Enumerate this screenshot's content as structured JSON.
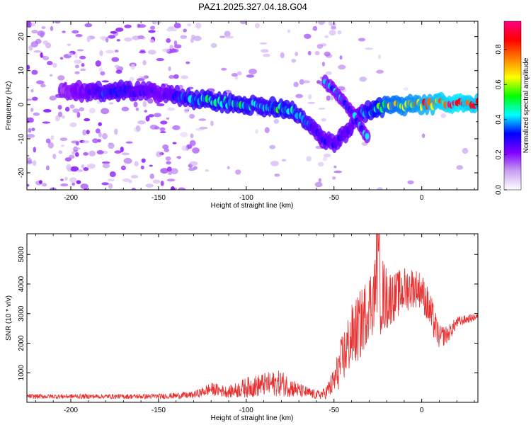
{
  "title": "PAZ1.2025.327.04.18.G04",
  "chart_data": [
    {
      "type": "heatmap",
      "xlabel": "Height of straight line (km)",
      "ylabel": "Frequency (Hz)",
      "xlim": [
        -225,
        32
      ],
      "ylim": [
        -25,
        24.5
      ],
      "xticks": [
        -200,
        -150,
        -100,
        -50,
        0
      ],
      "xtick_labels": [
        "-200",
        "-150",
        "-100",
        "-50",
        "0"
      ],
      "yticks": [
        20,
        10,
        0,
        -10,
        -20
      ],
      "ytick_labels": [
        "20",
        "10",
        "0",
        "-10",
        "-20"
      ],
      "colorbar": {
        "label": "Normalized spectral amplitude",
        "range": [
          0,
          0.96
        ],
        "ticks": [
          0,
          0.2,
          0.4,
          0.6,
          0.8
        ],
        "tick_labels": [
          "0.0",
          "0.2",
          "0.4",
          "0.6",
          "0.8"
        ],
        "colors": [
          "#ffffff",
          "#c8a0f0",
          "#8000ff",
          "#0000ff",
          "#00ffff",
          "#00ff00",
          "#ffff00",
          "#ff8000",
          "#ff0000",
          "#ff0080"
        ]
      },
      "ridge_main": {
        "x": [
          -200,
          -190,
          -180,
          -170,
          -160,
          -150,
          -140,
          -130,
          -120,
          -110,
          -100,
          -90,
          -80,
          -70,
          -65,
          -60,
          -55,
          -50,
          -45,
          -40,
          -35,
          -30,
          -25,
          -20,
          -10,
          0,
          10,
          20,
          30
        ],
        "y": [
          4,
          3.5,
          3.5,
          4,
          4,
          3.5,
          2.5,
          1.5,
          1,
          0.5,
          0,
          -0.5,
          -1,
          -3,
          -5,
          -8,
          -10,
          -12,
          -9,
          -6,
          -3,
          -2,
          -1,
          -0.5,
          0,
          0,
          0.5,
          0.5,
          0.5
        ]
      },
      "ridge_branch": {
        "x": [
          -55,
          -50,
          -45,
          -40,
          -35,
          -30
        ],
        "y": [
          6.5,
          4,
          1,
          -2,
          -6,
          -11
        ]
      },
      "ridge_amplitude": [
        0.2,
        0.3,
        0.35,
        0.35,
        0.3,
        0.25,
        0.35,
        0.45,
        0.5,
        0.5,
        0.5,
        0.45,
        0.55,
        0.45,
        0.4,
        0.3,
        0.3,
        0.3,
        0.3,
        0.3,
        0.35,
        0.45,
        0.6,
        0.75,
        0.8,
        0.85,
        0.9,
        0.95,
        0.9
      ]
    },
    {
      "type": "line",
      "xlabel": "Height of straight line (km)",
      "ylabel": "SNR (10 * v/v)",
      "xlim": [
        -225,
        32
      ],
      "ylim": [
        0,
        5700
      ],
      "xticks": [
        -200,
        -150,
        -100,
        -50,
        0
      ],
      "xtick_labels": [
        "-200",
        "-150",
        "-100",
        "-50",
        "0"
      ],
      "yticks": [
        1000,
        2000,
        3000,
        4000,
        5000
      ],
      "ytick_labels": [
        "1000",
        "2000",
        "3000",
        "4000",
        "5000"
      ],
      "color": "#e83030",
      "series": [
        {
          "name": "SNR",
          "x": [
            -225,
            -200,
            -175,
            -150,
            -130,
            -120,
            -110,
            -100,
            -90,
            -80,
            -70,
            -60,
            -55,
            -50,
            -45,
            -40,
            -35,
            -30,
            -25,
            -20,
            -15,
            -10,
            -5,
            0,
            5,
            10,
            15,
            20,
            25,
            32
          ],
          "y": [
            200,
            200,
            200,
            200,
            250,
            450,
            350,
            500,
            600,
            650,
            400,
            250,
            300,
            700,
            1500,
            2200,
            2600,
            3300,
            3800,
            3500,
            3600,
            3800,
            3900,
            3800,
            3000,
            2200,
            2300,
            2700,
            2800,
            2900
          ],
          "amplitude": [
            80,
            80,
            80,
            90,
            120,
            220,
            200,
            350,
            400,
            450,
            250,
            150,
            200,
            500,
            900,
            1100,
            1200,
            1100,
            1600,
            1100,
            800,
            800,
            700,
            600,
            700,
            400,
            300,
            200,
            150,
            100
          ]
        }
      ]
    }
  ]
}
